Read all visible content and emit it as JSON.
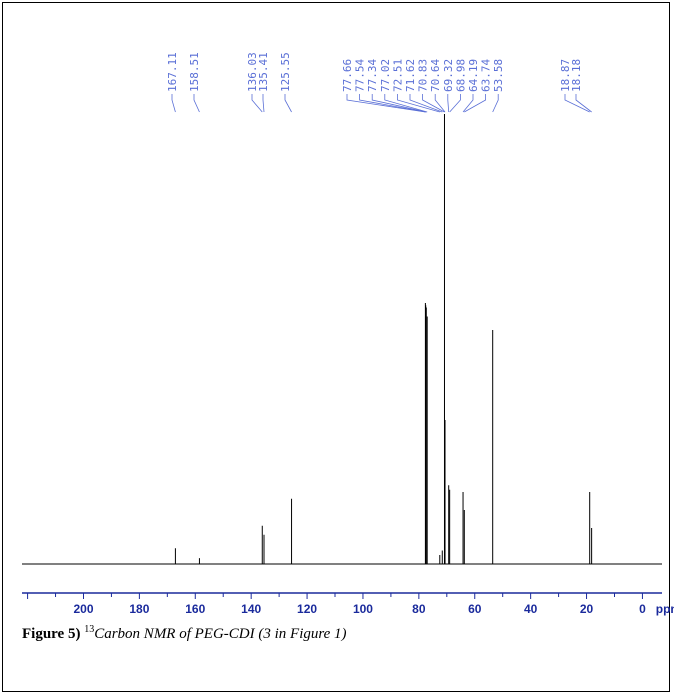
{
  "chart_data": {
    "type": "line",
    "title": "",
    "xlabel": "ppm",
    "ylabel": "",
    "xlim": [
      222,
      -7
    ],
    "ylim": [
      0,
      100
    ],
    "x_ticks": [
      "200",
      "180",
      "160",
      "140",
      "120",
      "100",
      "80",
      "60",
      "40",
      "20",
      "0"
    ],
    "x_unit": "ppm",
    "grid": false,
    "peak_labels": [
      "167.11",
      "158.51",
      "136.03",
      "135.41",
      "125.55",
      "77.66",
      "77.54",
      "77.34",
      "77.02",
      "72.51",
      "71.62",
      "70.83",
      "70.64",
      "69.32",
      "68.98",
      "64.19",
      "63.74",
      "53.58",
      "18.87",
      "18.18"
    ],
    "peaks": [
      {
        "x": 167.11,
        "y": 3.5
      },
      {
        "x": 158.51,
        "y": 1.3
      },
      {
        "x": 136.03,
        "y": 8.5
      },
      {
        "x": 135.41,
        "y": 6.5
      },
      {
        "x": 125.55,
        "y": 14.5
      },
      {
        "x": 77.66,
        "y": 58
      },
      {
        "x": 77.54,
        "y": 57.5
      },
      {
        "x": 77.34,
        "y": 57
      },
      {
        "x": 77.02,
        "y": 55
      },
      {
        "x": 72.51,
        "y": 2
      },
      {
        "x": 71.62,
        "y": 3
      },
      {
        "x": 70.83,
        "y": 100
      },
      {
        "x": 70.64,
        "y": 32
      },
      {
        "x": 69.32,
        "y": 17.5
      },
      {
        "x": 68.98,
        "y": 16.5
      },
      {
        "x": 64.19,
        "y": 16
      },
      {
        "x": 63.74,
        "y": 12
      },
      {
        "x": 53.58,
        "y": 52
      },
      {
        "x": 18.87,
        "y": 16
      },
      {
        "x": 18.18,
        "y": 8
      }
    ],
    "colors": {
      "spectrum": "#000000",
      "peak_label": "#5a6fd6",
      "axis": "#1a2a9c"
    }
  },
  "caption": {
    "label": "Figure 5)",
    "superscript": "13",
    "text": "Carbon NMR of PEG-CDI (3 in Figure 1)"
  }
}
